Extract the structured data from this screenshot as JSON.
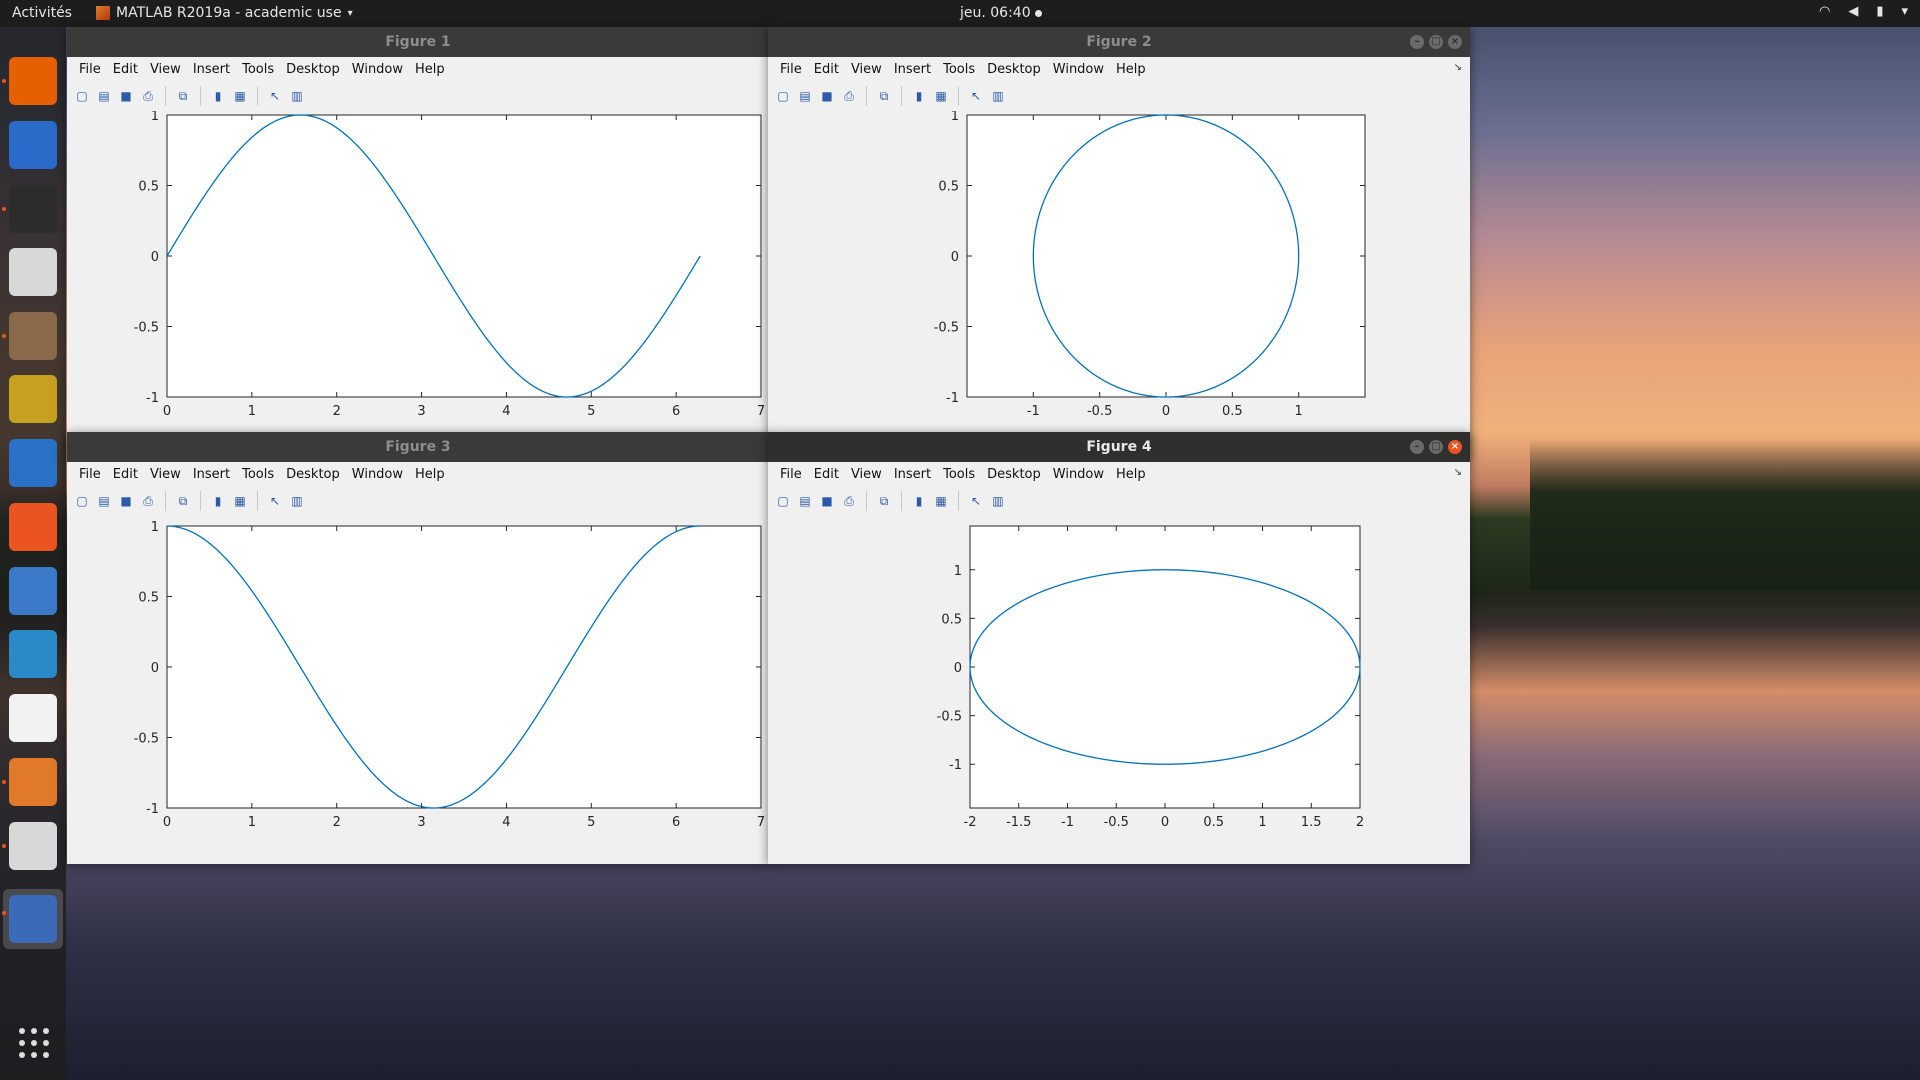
{
  "topbar": {
    "activities": "Activités",
    "app_title": "MATLAB R2019a - academic use",
    "clock": "jeu. 06:40"
  },
  "dock": {
    "items": [
      {
        "icon": "firefox-icon",
        "color": "#e66000"
      },
      {
        "icon": "thunderbird-icon",
        "color": "#2a6ac8"
      },
      {
        "icon": "terminal-icon",
        "color": "#2c2c2c"
      },
      {
        "icon": "text-editor-icon",
        "color": "#d8d8d8"
      },
      {
        "icon": "file-manager-icon",
        "color": "#8a6a4a"
      },
      {
        "icon": "rhythmbox-icon",
        "color": "#c8a020"
      },
      {
        "icon": "libreoffice-writer-icon",
        "color": "#2a72c8"
      },
      {
        "icon": "software-center-icon",
        "color": "#e95420"
      },
      {
        "icon": "help-icon",
        "color": "#3a7ac8"
      },
      {
        "icon": "system-monitor-icon",
        "color": "#2a8ac8"
      },
      {
        "icon": "amazon-icon",
        "color": "#f2f2f2"
      },
      {
        "icon": "matlab64-icon",
        "color": "#e07a2a"
      },
      {
        "icon": "text-editor-2-icon",
        "color": "#d8d8d8"
      },
      {
        "icon": "matlab-icon",
        "color": "#3a6ab8"
      }
    ]
  },
  "menus": [
    "File",
    "Edit",
    "View",
    "Insert",
    "Tools",
    "Desktop",
    "Window",
    "Help"
  ],
  "figures": [
    {
      "title": "Figure 1",
      "active": false
    },
    {
      "title": "Figure 2",
      "active": false
    },
    {
      "title": "Figure 3",
      "active": false
    },
    {
      "title": "Figure 4",
      "active": true
    }
  ],
  "chart_data": [
    {
      "type": "line",
      "title": "",
      "xlim": [
        0,
        7
      ],
      "ylim": [
        -1,
        1
      ],
      "xticks": [
        0,
        1,
        2,
        3,
        4,
        5,
        6,
        7
      ],
      "yticks": [
        -1,
        -0.5,
        0,
        0.5,
        1
      ],
      "xticklabels": [
        "0",
        "1",
        "2",
        "3",
        "4",
        "5",
        "6",
        "7"
      ],
      "yticklabels": [
        "-1",
        "-0.5",
        "0",
        "0.5",
        "1"
      ],
      "series": [
        {
          "function": "sin",
          "x_range": [
            0,
            6.2832
          ],
          "color": "#0072bd"
        }
      ]
    },
    {
      "type": "line",
      "title": "",
      "xlim": [
        -1.5,
        1.5
      ],
      "ylim": [
        -1,
        1
      ],
      "xticks": [
        -1,
        -0.5,
        0,
        0.5,
        1
      ],
      "yticks": [
        -1,
        -0.5,
        0,
        0.5,
        1
      ],
      "xticklabels": [
        "-1",
        "-0.5",
        "0",
        "0.5",
        "1"
      ],
      "yticklabels": [
        "-1",
        "-0.5",
        "0",
        "0.5",
        "1"
      ],
      "series": [
        {
          "function": "circle",
          "radius_x": 1,
          "radius_y": 1,
          "color": "#0072bd"
        }
      ]
    },
    {
      "type": "line",
      "title": "",
      "xlim": [
        0,
        7
      ],
      "ylim": [
        -1,
        1
      ],
      "xticks": [
        0,
        1,
        2,
        3,
        4,
        5,
        6,
        7
      ],
      "yticks": [
        -1,
        -0.5,
        0,
        0.5,
        1
      ],
      "xticklabels": [
        "0",
        "1",
        "2",
        "3",
        "4",
        "5",
        "6",
        "7"
      ],
      "yticklabels": [
        "-1",
        "-0.5",
        "0",
        "0.5",
        "1"
      ],
      "series": [
        {
          "function": "cos",
          "x_range": [
            0,
            6.2832
          ],
          "color": "#0072bd"
        }
      ]
    },
    {
      "type": "line",
      "title": "",
      "xlim": [
        -2,
        2
      ],
      "ylim": [
        -1.45,
        1.45
      ],
      "xticks": [
        -2,
        -1.5,
        -1,
        -0.5,
        0,
        0.5,
        1,
        1.5,
        2
      ],
      "yticks": [
        -1,
        -0.5,
        0,
        0.5,
        1
      ],
      "xticklabels": [
        "-2",
        "-1.5",
        "-1",
        "-0.5",
        "0",
        "0.5",
        "1",
        "1.5",
        "2"
      ],
      "yticklabels": [
        "-1",
        "-0.5",
        "0",
        "0.5",
        "1"
      ],
      "series": [
        {
          "function": "ellipse",
          "radius_x": 2,
          "radius_y": 1,
          "color": "#0072bd"
        }
      ]
    }
  ]
}
